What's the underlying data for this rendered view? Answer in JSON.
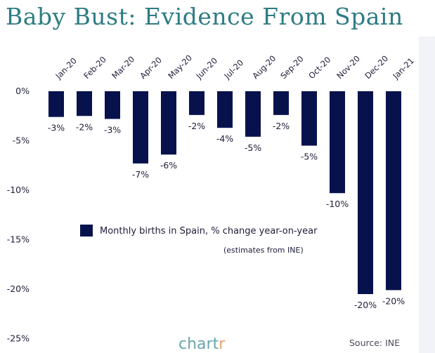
{
  "header": {
    "title": "Baby Bust: Evidence From Spain"
  },
  "legend": {
    "label": "Monthly births in Spain, % change year-on-year",
    "note": "(estimates from INE)"
  },
  "footer": {
    "brand_main": "chart",
    "brand_accent": "r",
    "source": "Source: INE"
  },
  "colors": {
    "bar": "#07124d",
    "title": "#2e7c83",
    "brand": "#6aa6ad",
    "brand_accent": "#e1a36a"
  },
  "chart_data": {
    "type": "bar",
    "title": "Baby Bust: Evidence From Spain",
    "xlabel": "",
    "ylabel": "",
    "ylim": [
      -25,
      0
    ],
    "yticks": [
      0,
      -5,
      -10,
      -15,
      -20,
      -25
    ],
    "ytick_labels": [
      "0%",
      "-5%",
      "-10%",
      "-15%",
      "-20%",
      "-25%"
    ],
    "categories": [
      "Jan-20",
      "Feb-20",
      "Mar-20",
      "Apr-20",
      "May-20",
      "Jun-20",
      "Jul-20",
      "Aug-20",
      "Sep-20",
      "Oct-20",
      "Nov-20",
      "Dec-20",
      "Jan-21"
    ],
    "values": [
      -2.6,
      -2.5,
      -2.8,
      -7.3,
      -6.4,
      -2.4,
      -3.7,
      -4.6,
      -2.4,
      -5.5,
      -10.3,
      -20.5,
      -20.1
    ],
    "data_labels": [
      "-3%",
      "-2%",
      "-3%",
      "-7%",
      "-6%",
      "-2%",
      "-4%",
      "-5%",
      "-2%",
      "-5%",
      "-10%",
      "-20%",
      "-20%"
    ],
    "series": [
      {
        "name": "Monthly births in Spain, % change year-on-year",
        "values": [
          -2.6,
          -2.5,
          -2.8,
          -7.3,
          -6.4,
          -2.4,
          -3.7,
          -4.6,
          -2.4,
          -5.5,
          -10.3,
          -20.5,
          -20.1
        ]
      }
    ],
    "grid": false,
    "legend_position": "center-left"
  }
}
